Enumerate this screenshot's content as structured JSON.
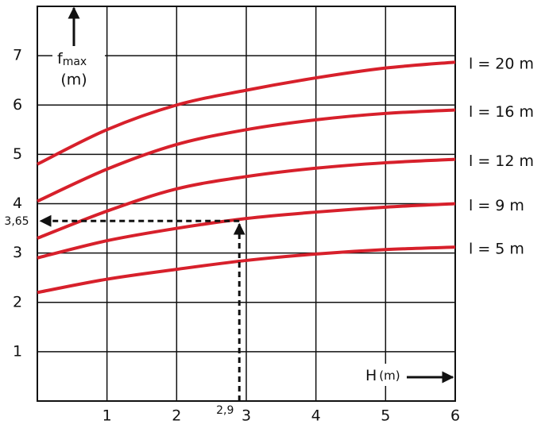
{
  "chart_data": {
    "type": "line",
    "x": [
      0,
      1,
      2,
      3,
      4,
      5,
      6
    ],
    "series": [
      {
        "name": "l = 20 m",
        "color": "#d7202b",
        "values": [
          4.8,
          5.5,
          6.0,
          6.3,
          6.55,
          6.75,
          6.87
        ]
      },
      {
        "name": "l = 16 m",
        "color": "#d7202b",
        "values": [
          4.05,
          4.7,
          5.2,
          5.5,
          5.7,
          5.83,
          5.9
        ]
      },
      {
        "name": "l = 12 m",
        "color": "#d7202b",
        "values": [
          3.3,
          3.85,
          4.3,
          4.55,
          4.72,
          4.83,
          4.9
        ]
      },
      {
        "name": "l = 9 m",
        "color": "#d7202b",
        "values": [
          2.9,
          3.25,
          3.5,
          3.7,
          3.83,
          3.93,
          4.0
        ]
      },
      {
        "name": "l = 5 m",
        "color": "#d7202b",
        "values": [
          2.2,
          2.47,
          2.67,
          2.85,
          2.98,
          3.07,
          3.12
        ]
      }
    ],
    "xlim": [
      0,
      6
    ],
    "xticks": [
      1,
      2,
      3,
      4,
      5,
      6
    ],
    "ylim": [
      0,
      8
    ],
    "yticks": [
      1,
      2,
      3,
      4,
      5,
      6,
      7
    ],
    "grid": true,
    "ylabel": "f",
    "ylabel_sub": "max",
    "ylabel_unit": "(m)",
    "xlabel": "H",
    "xlabel_unit": "(m)",
    "reading": {
      "x": {
        "value": 2.9,
        "label": "2,9"
      },
      "y": {
        "value": 3.65,
        "label": "3,65"
      }
    }
  }
}
